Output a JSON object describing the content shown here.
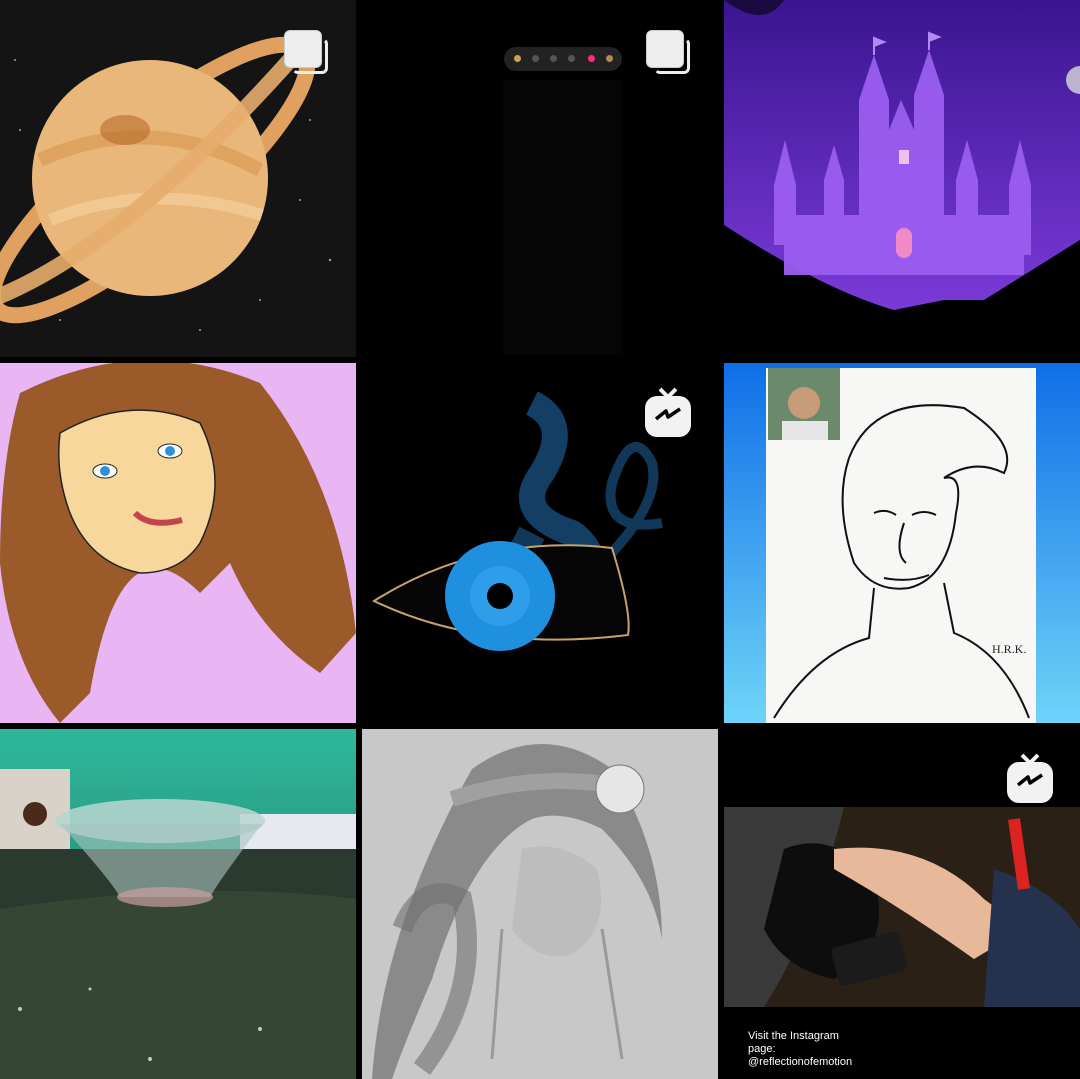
{
  "grid": {
    "tiles": [
      {
        "id": "saturn",
        "badge": "multi-image-icon"
      },
      {
        "id": "drawing-app",
        "badge": "multi-image-icon"
      },
      {
        "id": "castle",
        "badge": ""
      },
      {
        "id": "girl-portrait",
        "badge": ""
      },
      {
        "id": "eye",
        "badge": "igtv-icon"
      },
      {
        "id": "boy-sketch",
        "badge": "",
        "signature": "H.R.K."
      },
      {
        "id": "glass-bowl",
        "badge": ""
      },
      {
        "id": "pencil-girl",
        "badge": ""
      },
      {
        "id": "video",
        "badge": "igtv-icon"
      }
    ]
  },
  "video_caption": {
    "line1": "Visit the Instagram",
    "line2": "page:",
    "line3": "@reflectionofemotion"
  },
  "colors": {
    "background": "#000000",
    "badge": "#f2f2f2",
    "castle_sky": "#5b1fb0",
    "pink_bg": "#e9b6f3",
    "eye_blue": "#1f8fe0"
  }
}
